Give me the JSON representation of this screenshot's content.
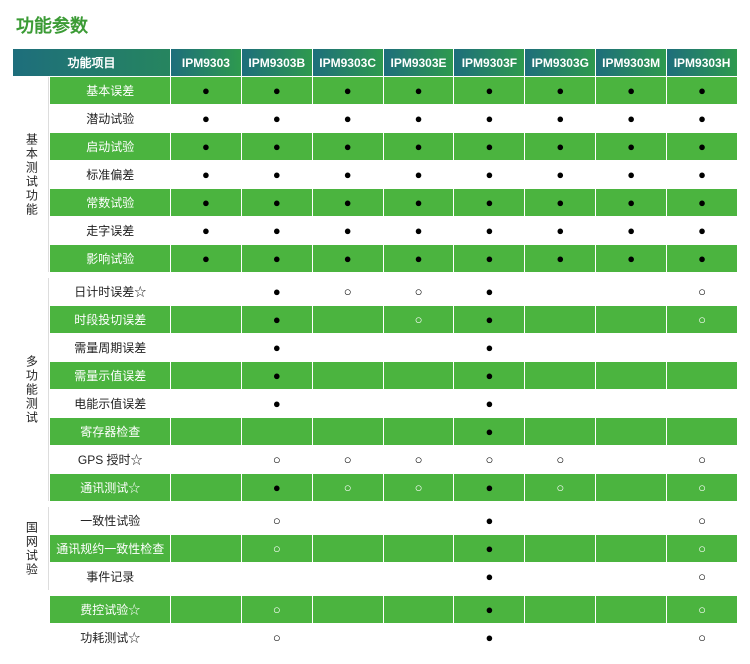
{
  "title": "功能参数",
  "columns": {
    "cat_item": "功能项目",
    "models": [
      "IPM9303",
      "IPM9303B",
      "IPM9303C",
      "IPM9303E",
      "IPM9303F",
      "IPM9303G",
      "IPM9303M",
      "IPM9303H"
    ]
  },
  "symbols": {
    "filled": "●",
    "hollow": "○",
    "star": "☆"
  },
  "colors": {
    "title": "#3b9b35",
    "green_row": "#4bb43f",
    "header_grad_from": "#1e6e7c",
    "header_grad_to": "#2e9a4e"
  },
  "groups": [
    {
      "category": "基本测试功能",
      "rows": [
        {
          "item": "基本误差",
          "marks": [
            "f",
            "f",
            "f",
            "f",
            "f",
            "f",
            "f",
            "f"
          ],
          "shade": "g"
        },
        {
          "item": "潜动试验",
          "marks": [
            "f",
            "f",
            "f",
            "f",
            "f",
            "f",
            "f",
            "f"
          ],
          "shade": "w"
        },
        {
          "item": "启动试验",
          "marks": [
            "f",
            "f",
            "f",
            "f",
            "f",
            "f",
            "f",
            "f"
          ],
          "shade": "g"
        },
        {
          "item": "标准偏差",
          "marks": [
            "f",
            "f",
            "f",
            "f",
            "f",
            "f",
            "f",
            "f"
          ],
          "shade": "w"
        },
        {
          "item": "常数试验",
          "marks": [
            "f",
            "f",
            "f",
            "f",
            "f",
            "f",
            "f",
            "f"
          ],
          "shade": "g"
        },
        {
          "item": "走字误差",
          "marks": [
            "f",
            "f",
            "f",
            "f",
            "f",
            "f",
            "f",
            "f"
          ],
          "shade": "w"
        },
        {
          "item": "影响试验",
          "marks": [
            "f",
            "f",
            "f",
            "f",
            "f",
            "f",
            "f",
            "f"
          ],
          "shade": "g"
        }
      ]
    },
    {
      "category": "多功能测试",
      "rows": [
        {
          "item": "日计时误差☆",
          "marks": [
            "",
            "f",
            "h",
            "h",
            "f",
            "",
            "",
            "h"
          ],
          "shade": "w"
        },
        {
          "item": "时段投切误差",
          "marks": [
            "",
            "f",
            "",
            "h",
            "f",
            "",
            "",
            "h"
          ],
          "shade": "g"
        },
        {
          "item": "需量周期误差",
          "marks": [
            "",
            "f",
            "",
            "",
            "f",
            "",
            "",
            ""
          ],
          "shade": "w"
        },
        {
          "item": "需量示值误差",
          "marks": [
            "",
            "f",
            "",
            "",
            "f",
            "",
            "",
            ""
          ],
          "shade": "g"
        },
        {
          "item": "电能示值误差",
          "marks": [
            "",
            "f",
            "",
            "",
            "f",
            "",
            "",
            ""
          ],
          "shade": "w"
        },
        {
          "item": "寄存器检查",
          "marks": [
            "",
            "",
            "",
            "",
            "f",
            "",
            "",
            ""
          ],
          "shade": "g"
        },
        {
          "item": "GPS 授时☆",
          "marks": [
            "",
            "h",
            "h",
            "h",
            "h",
            "h",
            "",
            "h"
          ],
          "shade": "w"
        },
        {
          "item": "通讯测试☆",
          "marks": [
            "",
            "f",
            "h",
            "h",
            "f",
            "h",
            "",
            "h"
          ],
          "shade": "g"
        }
      ]
    },
    {
      "category": "国网试验",
      "rows": [
        {
          "item": "一致性试验",
          "marks": [
            "",
            "h",
            "",
            "",
            "f",
            "",
            "",
            "h"
          ],
          "shade": "w"
        },
        {
          "item": "通讯规约一致性检查",
          "marks": [
            "",
            "h",
            "",
            "",
            "f",
            "",
            "",
            "h"
          ],
          "shade": "g"
        },
        {
          "item": "事件记录",
          "marks": [
            "",
            "",
            "",
            "",
            "f",
            "",
            "",
            "h"
          ],
          "shade": "w"
        }
      ]
    },
    {
      "category": "",
      "rows": [
        {
          "item": "费控试验☆",
          "marks": [
            "",
            "h",
            "",
            "",
            "f",
            "",
            "",
            "h"
          ],
          "shade": "g"
        },
        {
          "item": "功耗测试☆",
          "marks": [
            "",
            "h",
            "",
            "",
            "f",
            "",
            "",
            "h"
          ],
          "shade": "w"
        }
      ]
    }
  ]
}
